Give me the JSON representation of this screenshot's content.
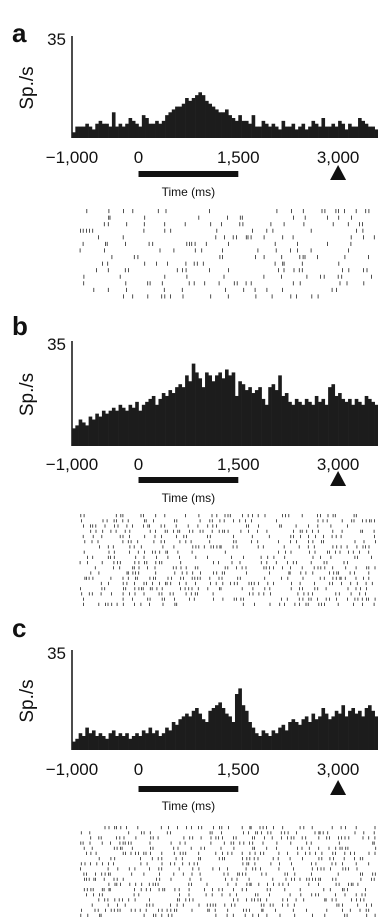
{
  "chart_data": [
    {
      "type": "bar",
      "panel": "a",
      "ylabel": "Sp./s",
      "xlabel": "Time (ms)",
      "ytick": "35",
      "ylim": [
        0,
        35
      ],
      "xlim": [
        -1000,
        3600
      ],
      "xticks": [
        -1000,
        0,
        1500,
        3000
      ],
      "xtick_labels": [
        "−1,000",
        "0",
        "1,500",
        "3,000"
      ],
      "bin_width_ms": 50,
      "stimulus_period": [
        0,
        1500
      ],
      "cue_time": 3000,
      "values": [
        2,
        4,
        4,
        4,
        5,
        4,
        3,
        5,
        6,
        5,
        5,
        4,
        9,
        4,
        5,
        4,
        5,
        7,
        6,
        5,
        4,
        8,
        7,
        5,
        5,
        6,
        5,
        6,
        8,
        9,
        10,
        11,
        11,
        12,
        14,
        13,
        14,
        15,
        16,
        15,
        13,
        12,
        11,
        10,
        9,
        9,
        10,
        8,
        7,
        6,
        8,
        6,
        6,
        5,
        8,
        4,
        4,
        6,
        5,
        4,
        5,
        4,
        3,
        6,
        4,
        4,
        5,
        3,
        4,
        5,
        3,
        4,
        6,
        5,
        4,
        7,
        4,
        4,
        5,
        4,
        6,
        5,
        3,
        5,
        4,
        4,
        7,
        6,
        5,
        4,
        4,
        3
      ],
      "raster_trials": 14
    },
    {
      "type": "bar",
      "panel": "b",
      "ylabel": "Sp./s",
      "xlabel": "Time (ms)",
      "ytick": "35",
      "ylim": [
        0,
        35
      ],
      "xlim": [
        -1000,
        3600
      ],
      "xticks": [
        -1000,
        0,
        1500,
        3000
      ],
      "xtick_labels": [
        "−1,000",
        "0",
        "1,500",
        "3,000"
      ],
      "bin_width_ms": 50,
      "stimulus_period": [
        0,
        1500
      ],
      "cue_time": 3000,
      "values": [
        6,
        7,
        9,
        8,
        7,
        10,
        9,
        11,
        10,
        12,
        11,
        12,
        13,
        12,
        14,
        13,
        12,
        14,
        13,
        15,
        12,
        14,
        15,
        16,
        17,
        14,
        16,
        18,
        17,
        19,
        18,
        20,
        21,
        20,
        24,
        22,
        28,
        25,
        23,
        20,
        25,
        24,
        22,
        24,
        25,
        23,
        26,
        24,
        25,
        17,
        22,
        21,
        19,
        20,
        18,
        19,
        20,
        16,
        14,
        20,
        21,
        19,
        24,
        17,
        18,
        15,
        14,
        16,
        15,
        14,
        16,
        15,
        14,
        17,
        15,
        16,
        14,
        20,
        21,
        17,
        18,
        16,
        15,
        16,
        14,
        16,
        15,
        14,
        17,
        16,
        15,
        14
      ],
      "raster_trials": 18
    },
    {
      "type": "bar",
      "panel": "c",
      "ylabel": "Sp./s",
      "xlabel": "Time (ms)",
      "ytick": "35",
      "ylim": [
        0,
        35
      ],
      "xlim": [
        -1000,
        3600
      ],
      "xticks": [
        -1000,
        0,
        1500,
        3000
      ],
      "xtick_labels": [
        "−1,000",
        "0",
        "1,500",
        "3,000"
      ],
      "bin_width_ms": 50,
      "stimulus_period": [
        0,
        1500
      ],
      "cue_time": 3000,
      "values": [
        3,
        4,
        6,
        5,
        8,
        6,
        7,
        5,
        6,
        5,
        4,
        6,
        7,
        5,
        6,
        5,
        6,
        4,
        5,
        6,
        5,
        7,
        6,
        8,
        6,
        7,
        5,
        6,
        8,
        7,
        10,
        9,
        11,
        12,
        13,
        12,
        14,
        15,
        13,
        11,
        10,
        14,
        15,
        16,
        17,
        15,
        13,
        12,
        10,
        20,
        22,
        16,
        14,
        10,
        8,
        6,
        5,
        7,
        6,
        5,
        7,
        6,
        8,
        9,
        7,
        10,
        11,
        10,
        9,
        11,
        12,
        10,
        13,
        11,
        12,
        15,
        13,
        11,
        12,
        14,
        13,
        16,
        12,
        14,
        15,
        13,
        14,
        12,
        15,
        16,
        14,
        12
      ],
      "raster_trials": 18
    }
  ]
}
